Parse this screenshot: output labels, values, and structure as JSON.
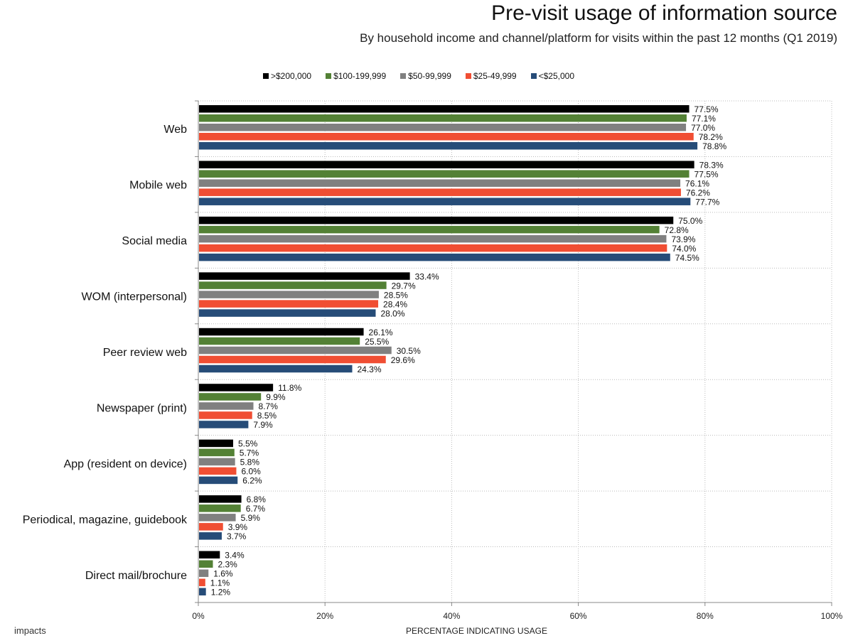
{
  "title": "Pre-visit usage of information source",
  "subtitle": "By household income and channel/platform for visits within the past 12 months  (Q1 2019)",
  "logo": "impacts",
  "chart_data": {
    "type": "bar",
    "orientation": "horizontal",
    "title": "Pre-visit usage of information source",
    "xlabel": "PERCENTAGE INDICATING USAGE",
    "xlim": [
      0,
      100
    ],
    "xticks": [
      "0%",
      "20%",
      "40%",
      "60%",
      "80%",
      "100%"
    ],
    "grid": true,
    "legend_position": "top",
    "categories": [
      "Web",
      "Mobile web",
      "Social media",
      "WOM (interpersonal)",
      "Peer review web",
      "Newspaper (print)",
      "App (resident on device)",
      "Periodical, magazine, guidebook",
      "Direct mail/brochure"
    ],
    "series": [
      {
        "name": ">$200,000",
        "color": "#000000",
        "values": [
          77.5,
          78.3,
          75.0,
          33.4,
          26.1,
          11.8,
          5.5,
          6.8,
          3.4
        ]
      },
      {
        "name": "$100-199,999",
        "color": "#538135",
        "values": [
          77.1,
          77.5,
          72.8,
          29.7,
          25.5,
          9.9,
          5.7,
          6.7,
          2.3
        ]
      },
      {
        "name": "$50-99,999",
        "color": "#808080",
        "values": [
          77.0,
          76.1,
          73.9,
          28.5,
          30.5,
          8.7,
          5.8,
          5.9,
          1.6
        ]
      },
      {
        "name": "$25-49,999",
        "color": "#f04e33",
        "values": [
          78.2,
          76.2,
          74.0,
          28.4,
          29.6,
          8.5,
          6.0,
          3.9,
          1.1
        ]
      },
      {
        "name": "<$25,000",
        "color": "#264c78",
        "values": [
          78.8,
          77.7,
          74.5,
          28.0,
          24.3,
          7.9,
          6.2,
          3.7,
          1.2
        ]
      }
    ]
  }
}
